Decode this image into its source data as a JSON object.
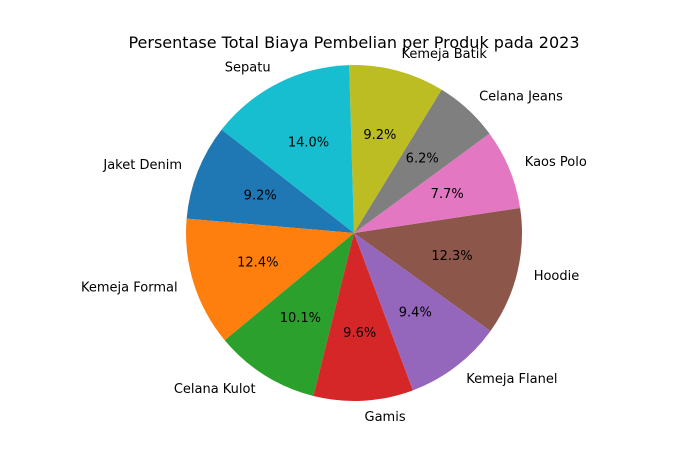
{
  "chart_data": {
    "type": "pie",
    "title": "Persentase Total Biaya Pembelian per Produk pada 2023",
    "categories": [
      "Jaket Denim",
      "Kemeja Formal",
      "Celana Kulot",
      "Gamis",
      "Kemeja Flanel",
      "Hoodie",
      "Kaos Polo",
      "Celana Jeans",
      "Kemeja Batik",
      "Sepatu"
    ],
    "values": [
      9.2,
      12.4,
      10.1,
      9.6,
      9.4,
      12.3,
      7.7,
      6.2,
      9.2,
      14.0
    ],
    "value_labels": [
      "9.2%",
      "12.4%",
      "10.1%",
      "9.6%",
      "9.4%",
      "12.3%",
      "7.7%",
      "6.2%",
      "9.2%",
      "14.0%"
    ],
    "colors": [
      "#1f77b4",
      "#ff7f0e",
      "#2ca02c",
      "#d62728",
      "#9467bd",
      "#8c564b",
      "#e377c2",
      "#7f7f7f",
      "#bcbd22",
      "#17becf"
    ],
    "start_angle_deg": 142,
    "direction": "counterclockwise",
    "legend": "none"
  }
}
